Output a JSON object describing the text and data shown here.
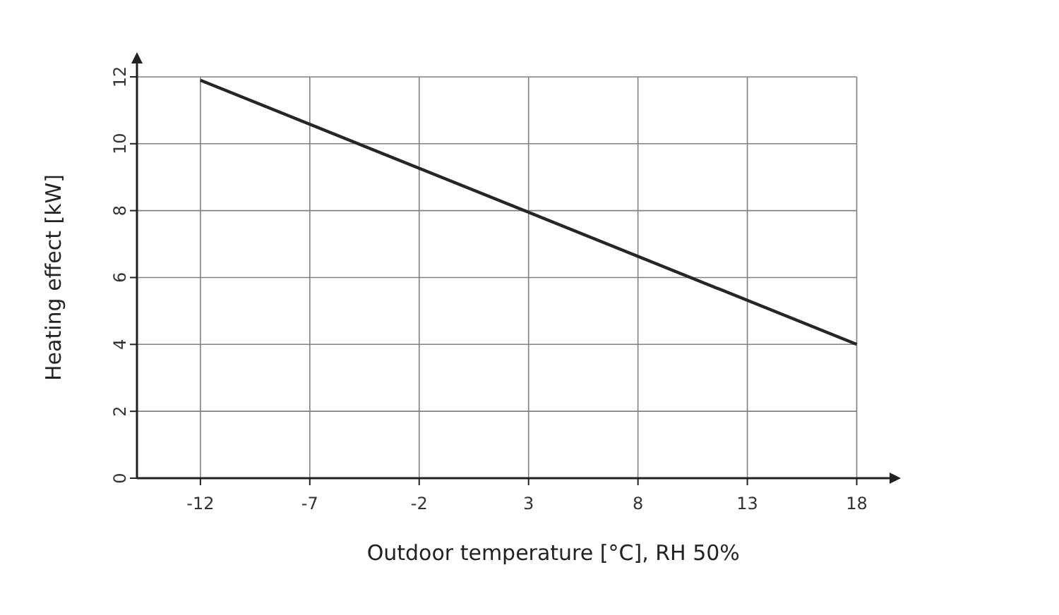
{
  "chart_data": {
    "type": "line",
    "xlabel": "Outdoor temperature [°C], RH 50%",
    "ylabel": "Heating effect [kW]",
    "x": [
      -12,
      18
    ],
    "series": [
      {
        "color": "#262626",
        "values": [
          11.9,
          4.0
        ]
      }
    ],
    "xlim": [
      -14.9,
      19.5
    ],
    "ylim": [
      0,
      12.4
    ],
    "xticks": [
      -12,
      -7,
      -2,
      3,
      8,
      13,
      18
    ],
    "yticks": [
      0,
      2,
      4,
      6,
      8,
      10,
      12
    ],
    "grid": true,
    "marker": "none",
    "line_style": "solid"
  }
}
